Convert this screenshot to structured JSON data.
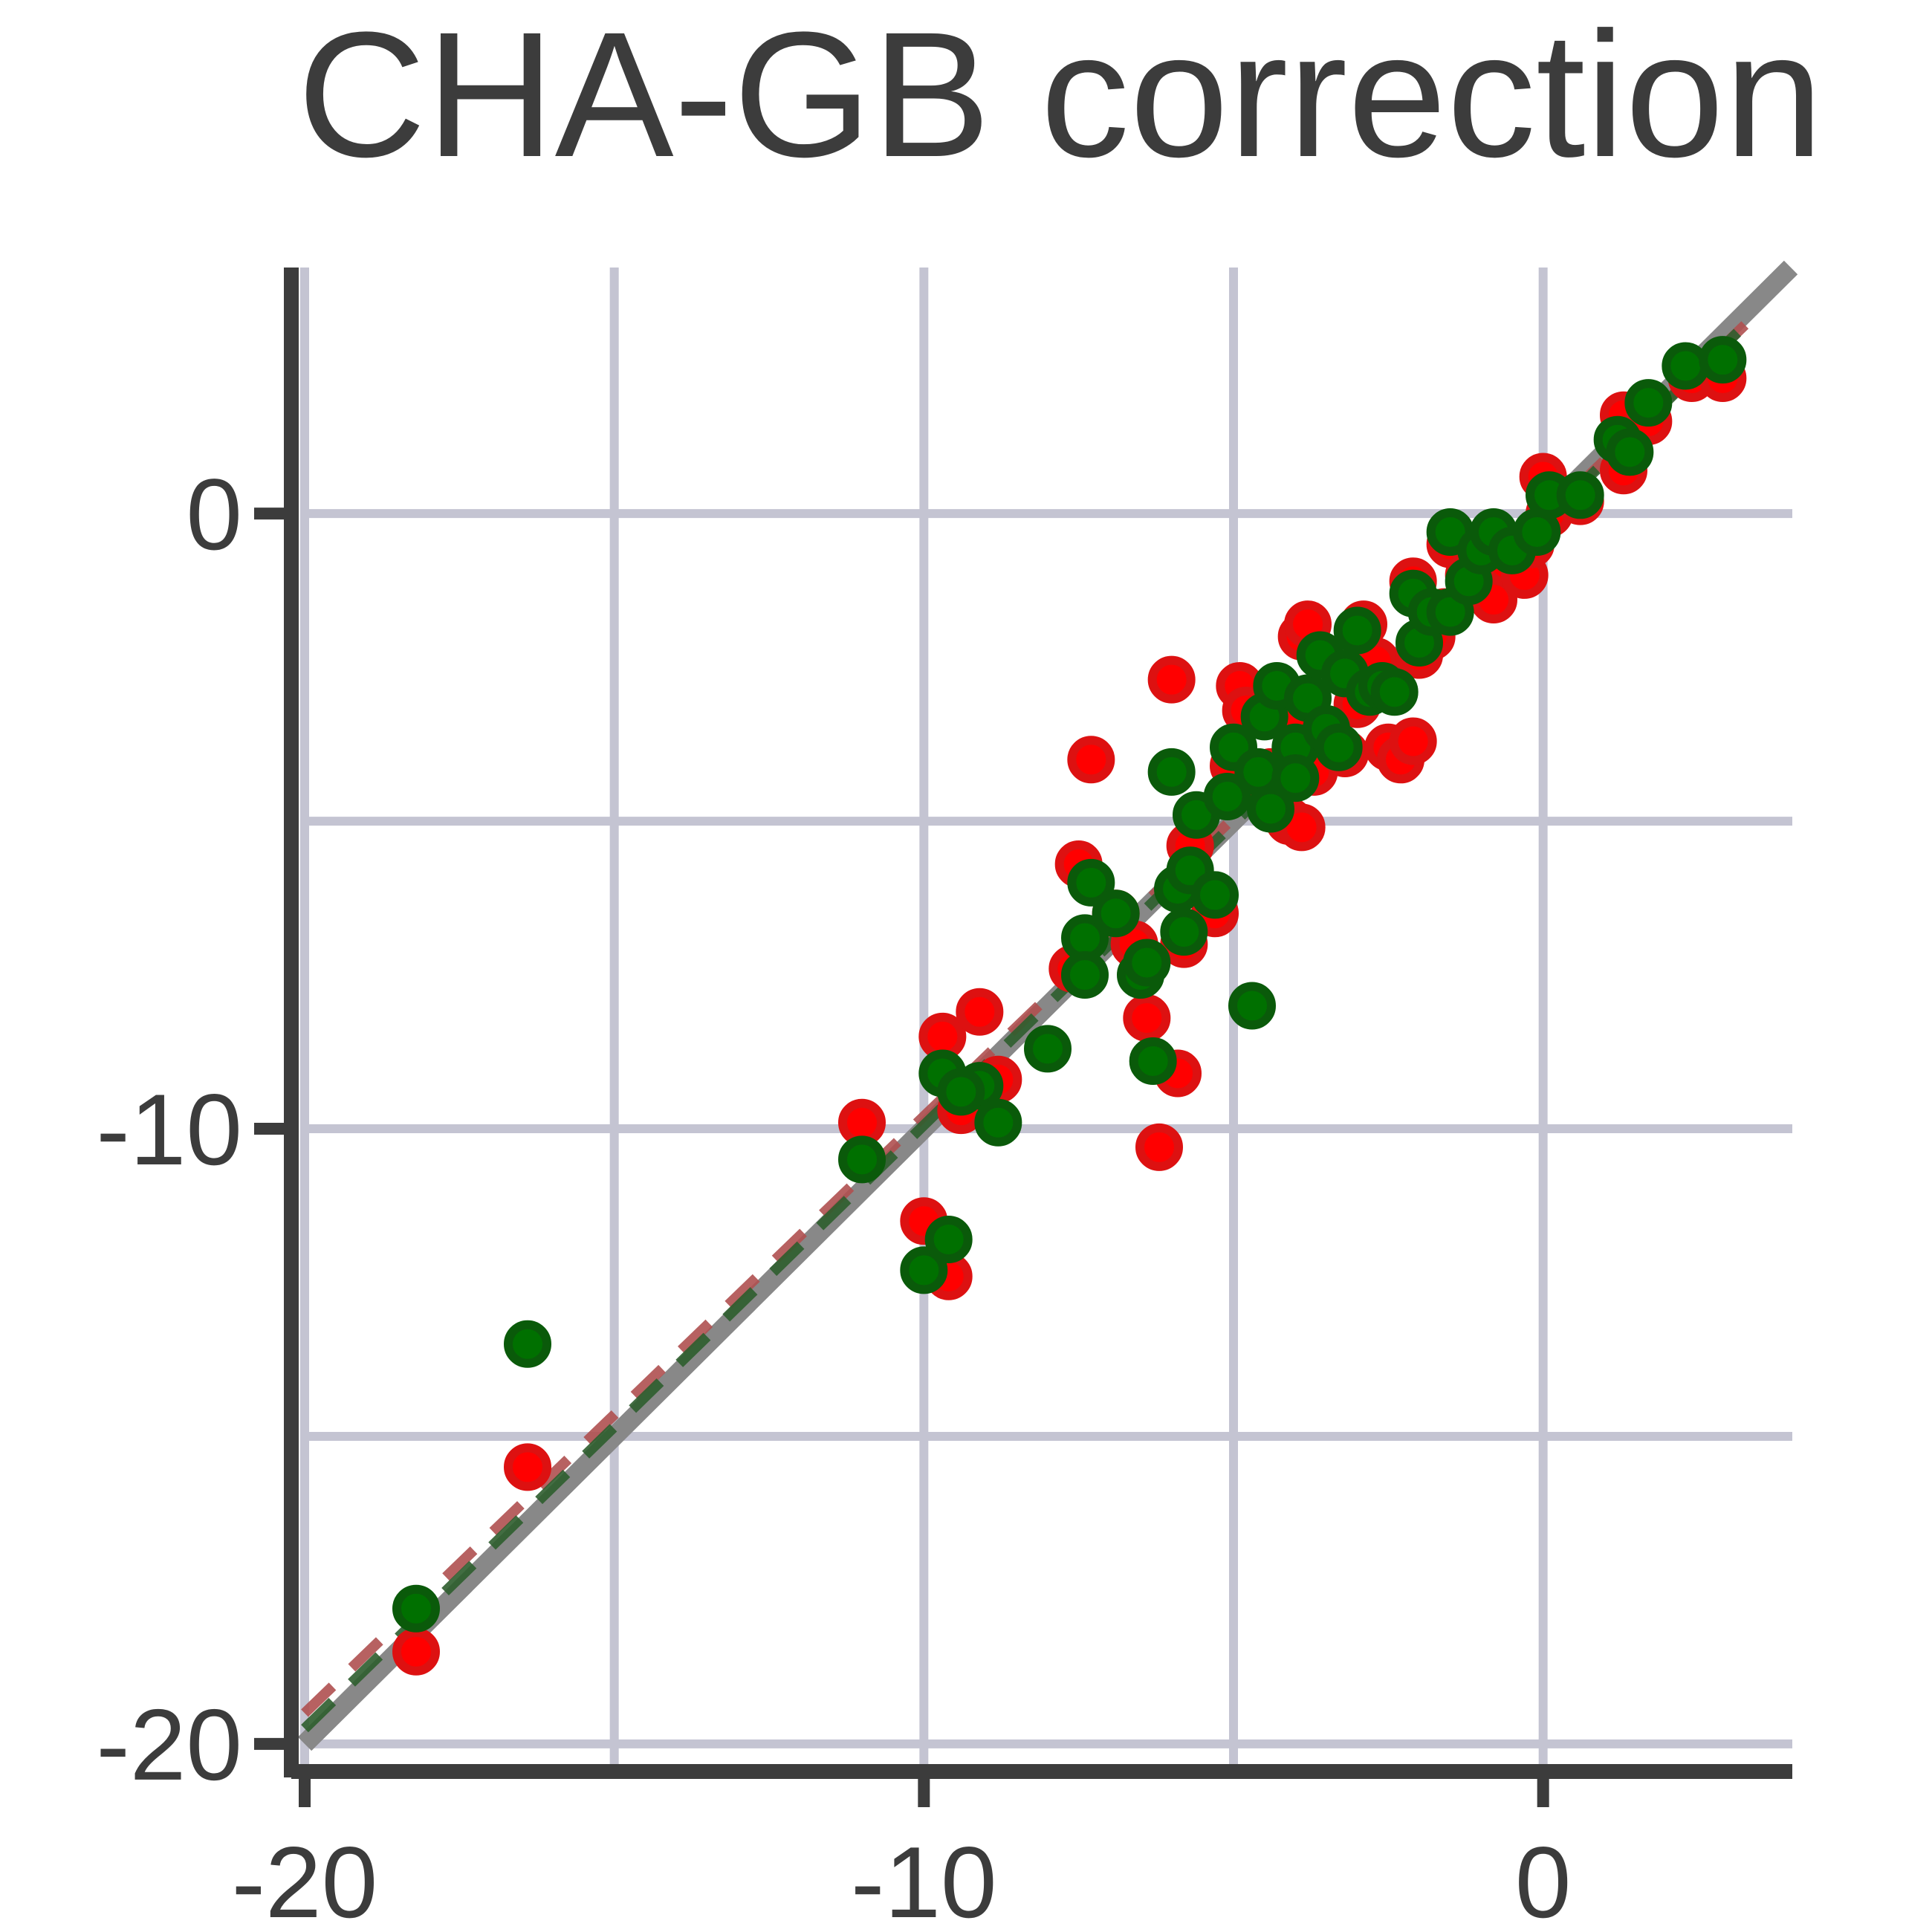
{
  "chart_data": {
    "type": "scatter",
    "title": "CHA-GB correction",
    "xlabel": "",
    "ylabel": "",
    "xlim": [
      -20,
      4
    ],
    "ylim": [
      -20.4,
      4
    ],
    "xticks": [
      -20,
      -10,
      0
    ],
    "yticks": [
      -20,
      -10,
      0
    ],
    "xtick_labels": [
      "-20",
      "-10",
      "0"
    ],
    "ytick_labels": [
      "-20",
      "-10",
      "0"
    ],
    "x_gridlines": [
      -20,
      -15,
      -10,
      -5,
      0
    ],
    "y_gridlines": [
      -20,
      -15,
      -10,
      -5,
      0
    ],
    "grid": true,
    "colors": {
      "series_a": "#ff0000",
      "series_a_edge": "#dd1111",
      "series_a_fit": "#b05050",
      "series_b": "#007000",
      "series_b_edge": "#0a5a0a",
      "series_b_fit": "#2e5e2e",
      "identity_line": "#888888",
      "grid": "#c4c4d2",
      "axis": "#3c3c3c",
      "text": "#3c3c3c"
    },
    "identity_line": {
      "from": [
        -20,
        -20
      ],
      "to": [
        4,
        4
      ]
    },
    "fit_lines": [
      {
        "series": 0,
        "from": [
          -20,
          -19.5
        ],
        "to": [
          3.5,
          3.3
        ]
      },
      {
        "series": 1,
        "from": [
          -20,
          -19.75
        ],
        "to": [
          3.4,
          3.2
        ]
      }
    ],
    "series": [
      {
        "points": [
          [
            -18.2,
            -18.5
          ],
          [
            -16.4,
            -15.5
          ],
          [
            -11.0,
            -9.9
          ],
          [
            -10.0,
            -11.5
          ],
          [
            -9.6,
            -12.4
          ],
          [
            -9.7,
            -8.5
          ],
          [
            -9.1,
            -8.1
          ],
          [
            -9.4,
            -9.7
          ],
          [
            -8.8,
            -9.2
          ],
          [
            -7.6,
            -7.4
          ],
          [
            -7.5,
            -5.7
          ],
          [
            -7.3,
            -4.0
          ],
          [
            -6.9,
            -6.5
          ],
          [
            -6.6,
            -7.0
          ],
          [
            -6.4,
            -8.2
          ],
          [
            -6.2,
            -10.3
          ],
          [
            -6.0,
            -2.7
          ],
          [
            -5.9,
            -9.1
          ],
          [
            -5.8,
            -7.0
          ],
          [
            -5.7,
            -5.4
          ],
          [
            -5.3,
            -6.5
          ],
          [
            -5.0,
            -4.1
          ],
          [
            -4.9,
            -2.8
          ],
          [
            -4.8,
            -3.2
          ],
          [
            -4.5,
            -4.5
          ],
          [
            -4.4,
            -4.2
          ],
          [
            -4.1,
            -5.0
          ],
          [
            -4.0,
            -3.4
          ],
          [
            -3.9,
            -5.1
          ],
          [
            -3.9,
            -2.0
          ],
          [
            -3.8,
            -1.8
          ],
          [
            -3.7,
            -4.2
          ],
          [
            -3.5,
            -3.6
          ],
          [
            -3.2,
            -3.9
          ],
          [
            -3.0,
            -3.1
          ],
          [
            -2.9,
            -1.8
          ],
          [
            -2.7,
            -2.4
          ],
          [
            -2.5,
            -3.8
          ],
          [
            -2.3,
            -4.0
          ],
          [
            -2.1,
            -3.7
          ],
          [
            -2.1,
            -1.1
          ],
          [
            -2.0,
            -2.3
          ],
          [
            -1.8,
            -2.0
          ],
          [
            -1.6,
            -1.6
          ],
          [
            -1.5,
            -0.5
          ],
          [
            -1.2,
            -1.0
          ],
          [
            -0.8,
            -1.4
          ],
          [
            -0.6,
            -0.8
          ],
          [
            -0.3,
            -1.0
          ],
          [
            -0.2,
            -0.5
          ],
          [
            0.0,
            0.6
          ],
          [
            0.1,
            0.0
          ],
          [
            0.6,
            0.2
          ],
          [
            1.3,
            1.6
          ],
          [
            1.3,
            0.7
          ],
          [
            1.7,
            1.5
          ],
          [
            2.4,
            2.2
          ],
          [
            2.9,
            2.2
          ]
        ]
      },
      {
        "points": [
          [
            -18.2,
            -17.8
          ],
          [
            -16.4,
            -13.5
          ],
          [
            -11.0,
            -10.5
          ],
          [
            -10.0,
            -12.3
          ],
          [
            -9.6,
            -11.8
          ],
          [
            -9.7,
            -9.1
          ],
          [
            -9.1,
            -9.3
          ],
          [
            -9.4,
            -9.4
          ],
          [
            -8.8,
            -9.9
          ],
          [
            -8.0,
            -8.7
          ],
          [
            -7.4,
            -6.9
          ],
          [
            -7.4,
            -7.5
          ],
          [
            -7.3,
            -6.0
          ],
          [
            -6.9,
            -6.5
          ],
          [
            -6.5,
            -7.5
          ],
          [
            -6.4,
            -7.3
          ],
          [
            -6.3,
            -8.9
          ],
          [
            -6.0,
            -4.2
          ],
          [
            -5.9,
            -6.1
          ],
          [
            -5.8,
            -6.8
          ],
          [
            -5.7,
            -5.8
          ],
          [
            -5.6,
            -4.9
          ],
          [
            -5.3,
            -6.2
          ],
          [
            -5.1,
            -4.6
          ],
          [
            -5.0,
            -3.8
          ],
          [
            -4.7,
            -8.0
          ],
          [
            -4.6,
            -4.2
          ],
          [
            -4.5,
            -3.3
          ],
          [
            -4.4,
            -4.8
          ],
          [
            -4.3,
            -2.8
          ],
          [
            -4.0,
            -3.8
          ],
          [
            -4.0,
            -4.3
          ],
          [
            -3.8,
            -3.0
          ],
          [
            -3.6,
            -2.3
          ],
          [
            -3.5,
            -3.5
          ],
          [
            -3.3,
            -3.8
          ],
          [
            -3.2,
            -2.6
          ],
          [
            -3.0,
            -1.9
          ],
          [
            -2.8,
            -2.9
          ],
          [
            -2.6,
            -2.8
          ],
          [
            -2.4,
            -2.9
          ],
          [
            -2.1,
            -1.3
          ],
          [
            -2.0,
            -2.1
          ],
          [
            -1.8,
            -1.6
          ],
          [
            -1.5,
            -0.3
          ],
          [
            -1.5,
            -1.6
          ],
          [
            -1.2,
            -1.1
          ],
          [
            -1.0,
            -0.6
          ],
          [
            -0.8,
            -0.3
          ],
          [
            -0.5,
            -0.6
          ],
          [
            -0.1,
            -0.3
          ],
          [
            0.1,
            0.3
          ],
          [
            0.6,
            0.3
          ],
          [
            1.2,
            1.2
          ],
          [
            1.4,
            1.0
          ],
          [
            1.7,
            1.8
          ],
          [
            2.3,
            2.4
          ],
          [
            2.9,
            2.5
          ]
        ]
      }
    ]
  }
}
